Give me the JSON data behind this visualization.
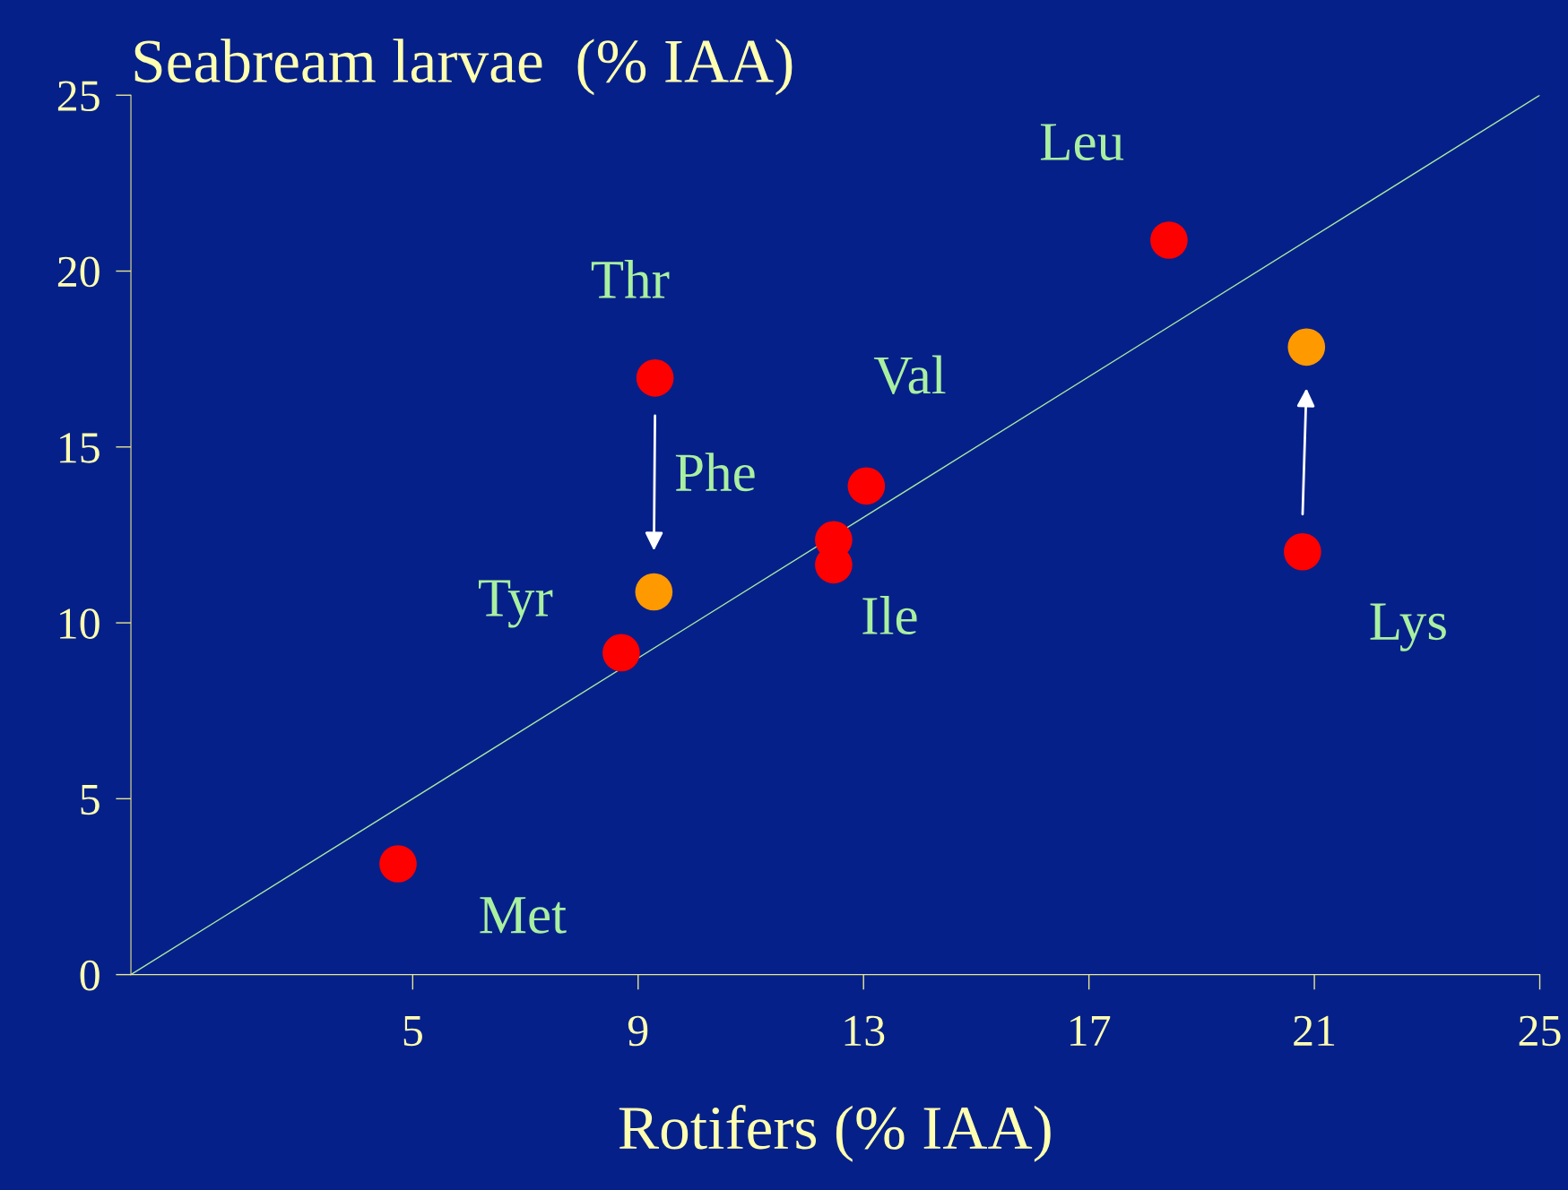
{
  "chart_data": {
    "type": "scatter",
    "title": "Seabream larvae  (% IAA)",
    "xlabel": "Rotifers (% IAA)",
    "series": [
      {
        "type": "line",
        "marker": "none",
        "color": "#a8e8a0",
        "x": [
          0,
          25
        ],
        "values": [
          0,
          25
        ]
      },
      {
        "color": "#ff0000",
        "x": [
          4.74,
          8.7,
          9.3,
          12.47,
          12.47,
          13.05,
          18.42,
          20.79
        ],
        "values": [
          3.15,
          9.15,
          16.96,
          12.36,
          11.65,
          13.89,
          20.88,
          12.02
        ]
      },
      {
        "color": "#ff9900",
        "x": [
          9.28,
          20.86
        ],
        "values": [
          10.88,
          17.84
        ]
      }
    ],
    "annotations": [
      {
        "text": "Met",
        "x": 4.74,
        "y": 3.15
      },
      {
        "text": "Tyr",
        "x": 8.7,
        "y": 9.15
      },
      {
        "text": "Thr",
        "x": 9.3,
        "y": 16.96
      },
      {
        "text": "Phe",
        "x": 12.47,
        "y": 12.36
      },
      {
        "text": "Ile",
        "x": 12.47,
        "y": 11.65
      },
      {
        "text": "Val",
        "x": 13.05,
        "y": 13.89
      },
      {
        "text": "Leu",
        "x": 18.42,
        "y": 20.88
      },
      {
        "text": "Lys",
        "x": 20.79,
        "y": 12.02
      }
    ],
    "xlim": [
      0,
      25
    ],
    "ylim": [
      0,
      25
    ],
    "xticks": [
      5,
      9,
      13,
      17,
      21,
      25
    ],
    "yticks": [
      0,
      5,
      10,
      15,
      20,
      25
    ],
    "marker": "circle",
    "grid": false,
    "legend": false
  }
}
